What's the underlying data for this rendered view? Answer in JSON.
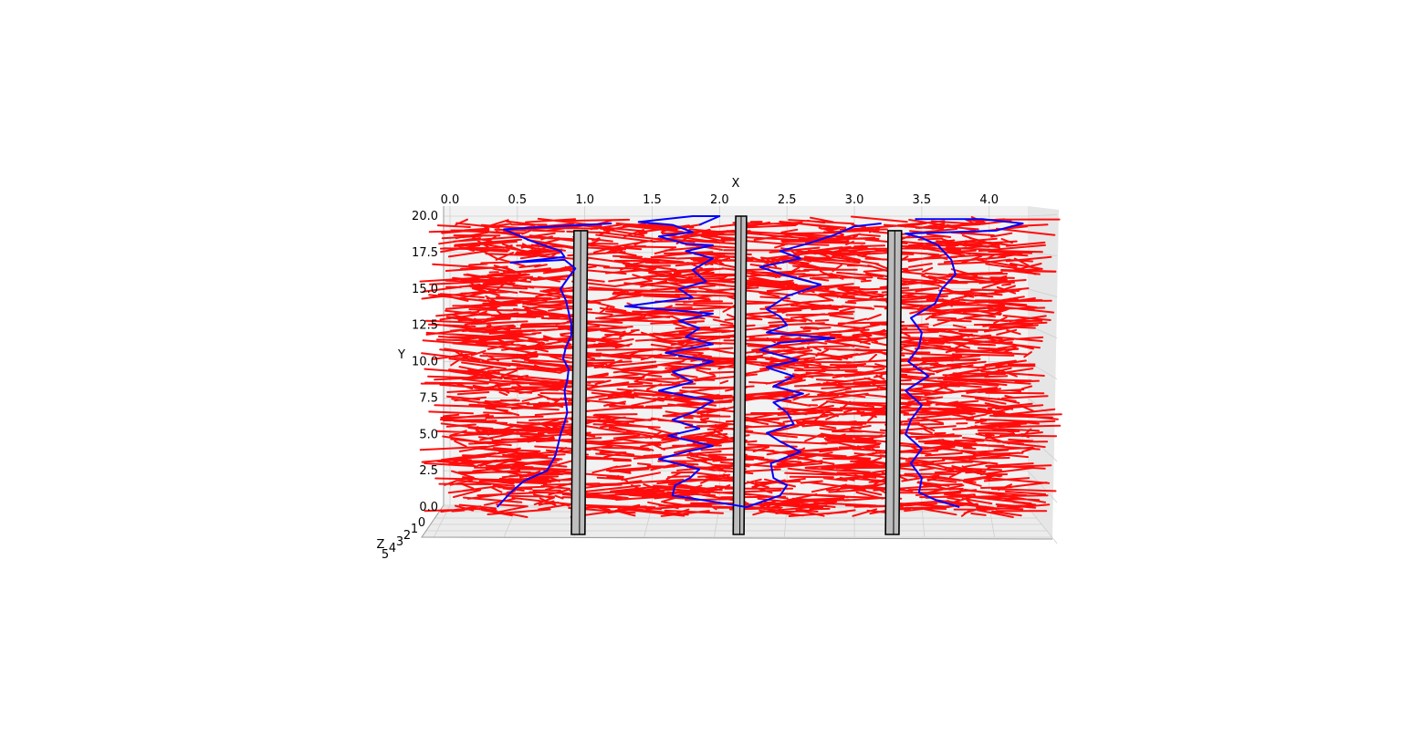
{
  "chart_data": {
    "type": "line",
    "projection": "3d",
    "xlabel": "X",
    "ylabel": "Y",
    "zlabel": "Z",
    "xlim": [
      0.0,
      4.3
    ],
    "ylim": [
      0.0,
      20.0
    ],
    "zlim": [
      0,
      5
    ],
    "x_ticks": [
      "0.0",
      "0.5",
      "1.0",
      "1.5",
      "2.0",
      "2.5",
      "3.0",
      "3.5",
      "4.0"
    ],
    "y_ticks": [
      "0.0",
      "2.5",
      "5.0",
      "7.5",
      "10.0",
      "12.5",
      "15.0",
      "17.5",
      "20.0"
    ],
    "z_ticks": [
      "0",
      "1",
      "2",
      "3",
      "4",
      "5"
    ],
    "grid": true,
    "colors": {
      "samples": "#ff0000",
      "paths": "#0000ff",
      "walls": "#bdbdbd",
      "wall_edge": "#000000"
    },
    "walls": [
      {
        "x": [
          0.92,
          1.02
        ],
        "y": [
          0,
          19
        ]
      },
      {
        "x": [
          2.12,
          2.2
        ],
        "y": [
          0,
          20
        ]
      },
      {
        "x": [
          3.25,
          3.35
        ],
        "y": [
          0,
          19
        ]
      }
    ],
    "series": [
      {
        "color": "#0000ff",
        "x": [
          0.35,
          0.45,
          0.55,
          0.72,
          0.78,
          0.8,
          0.82,
          0.85,
          0.87,
          0.86,
          0.85,
          0.87,
          0.88,
          0.84,
          0.86,
          0.9,
          0.9,
          0.88,
          0.86,
          0.82,
          0.88,
          0.93,
          0.85,
          0.45,
          0.85,
          0.82,
          0.6,
          0.4,
          0.78,
          1.2,
          1.2
        ],
        "y": [
          0.0,
          1.0,
          1.8,
          2.5,
          3.5,
          4.2,
          5.0,
          5.8,
          6.5,
          7.2,
          8.0,
          8.7,
          9.5,
          10.2,
          11.0,
          11.8,
          12.6,
          13.4,
          14.2,
          15.0,
          15.8,
          16.4,
          17.0,
          16.8,
          17.2,
          17.6,
          18.3,
          19.1,
          19.3,
          19.5,
          19.5
        ]
      },
      {
        "color": "#0000ff",
        "x": [
          2.2,
          2.0,
          1.65,
          1.67,
          1.78,
          1.85,
          1.55,
          1.75,
          1.95,
          1.62,
          1.85,
          1.65,
          1.8,
          1.95,
          1.55,
          1.8,
          1.65,
          1.95,
          1.6,
          1.95,
          1.75,
          1.85,
          1.7,
          1.95,
          1.3,
          1.8,
          1.7,
          1.9,
          1.8,
          1.95,
          1.75,
          1.95,
          1.75,
          1.55,
          1.8,
          1.65,
          1.4,
          1.8,
          2.0,
          1.85
        ],
        "y": [
          0.0,
          0.3,
          0.8,
          1.5,
          2.0,
          2.6,
          3.3,
          3.8,
          4.2,
          4.9,
          5.4,
          6.0,
          6.5,
          7.3,
          8.0,
          8.6,
          9.3,
          10.0,
          10.6,
          11.2,
          11.7,
          12.3,
          12.8,
          13.3,
          13.8,
          14.4,
          15.0,
          15.5,
          16.3,
          17.1,
          17.6,
          18.0,
          18.1,
          18.6,
          18.9,
          19.4,
          19.6,
          20.0,
          20.0,
          19.4
        ]
      },
      {
        "color": "#0000ff",
        "x": [
          2.2,
          2.45,
          2.5,
          2.4,
          2.38,
          2.6,
          2.45,
          2.35,
          2.55,
          2.5,
          2.4,
          2.62,
          2.4,
          2.55,
          2.35,
          2.58,
          2.3,
          2.45,
          2.85,
          2.35,
          2.5,
          2.45,
          2.35,
          2.5,
          2.75,
          2.5,
          2.3,
          2.6,
          2.45,
          2.65,
          2.85,
          3.0,
          3.2
        ],
        "y": [
          0.0,
          0.8,
          1.5,
          2.0,
          3.0,
          3.8,
          4.5,
          5.1,
          5.7,
          6.5,
          7.2,
          7.8,
          8.3,
          9.0,
          9.6,
          10.1,
          10.8,
          11.3,
          11.6,
          12.0,
          12.5,
          13.1,
          13.6,
          14.5,
          15.3,
          15.9,
          16.5,
          17.1,
          17.6,
          18.1,
          18.7,
          19.3,
          19.5
        ]
      },
      {
        "color": "#0000ff",
        "x": [
          3.78,
          3.6,
          3.48,
          3.5,
          3.42,
          3.5,
          3.38,
          3.42,
          3.5,
          3.38,
          3.55,
          3.4,
          3.48,
          3.5,
          3.42,
          3.6,
          3.65,
          3.75,
          3.72,
          3.62,
          3.5,
          3.38,
          4.05,
          4.25,
          3.95,
          3.45
        ],
        "y": [
          0.0,
          0.5,
          1.0,
          2.0,
          3.0,
          4.0,
          5.0,
          6.0,
          7.0,
          8.0,
          9.0,
          10.0,
          11.0,
          12.0,
          13.0,
          14.0,
          15.0,
          16.0,
          17.0,
          18.0,
          18.5,
          18.8,
          19.0,
          19.5,
          19.8,
          19.8
        ]
      }
    ]
  }
}
